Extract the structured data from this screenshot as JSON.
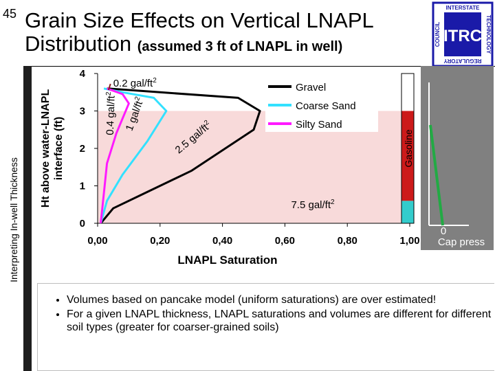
{
  "slide": {
    "number": "45",
    "title_line1": "Grain Size Effects on Vertical LNAPL",
    "title_line2": "Distribution",
    "title_sub": "(assumed 3 ft of LNAPL in well)",
    "side_label": "Interpreting In-well Thickness"
  },
  "logo": {
    "org": "ITRC",
    "top_text": "INTERSTATE",
    "left_text": "COUNCIL",
    "right_text": "TECHNOLOGY",
    "bottom_text": "REGULATORY",
    "color": "#1a1aa8"
  },
  "chart_data": {
    "type": "line",
    "xlabel": "LNAPL Saturation",
    "ylabel_line1": "Ht above water-LNAPL",
    "ylabel_line2": "interface (ft)",
    "xlim": [
      0,
      1
    ],
    "ylim": [
      0,
      4
    ],
    "x_ticks": [
      0,
      0.2,
      0.4,
      0.6,
      0.8,
      1.0
    ],
    "x_tick_labels": [
      "0,00",
      "0,20",
      "0,40",
      "0,60",
      "0,80",
      "1,00"
    ],
    "y_ticks": [
      0,
      1,
      2,
      3,
      4
    ],
    "y_tick_labels": [
      "0",
      "1",
      "2",
      "3",
      "4"
    ],
    "shaded_band": {
      "ymin": 0,
      "ymax": 3,
      "color": "#f8dada"
    },
    "series": [
      {
        "name": "Gravel",
        "color": "#000000",
        "x": [
          0.01,
          0.05,
          0.15,
          0.3,
          0.5,
          0.52,
          0.45,
          0.2,
          0.03
        ],
        "y": [
          0.0,
          0.4,
          0.8,
          1.4,
          2.5,
          3.0,
          3.35,
          3.5,
          3.6
        ]
      },
      {
        "name": "Coarse Sand",
        "color": "#33e1ff",
        "x": [
          0.01,
          0.03,
          0.08,
          0.16,
          0.22,
          0.18,
          0.08,
          0.02
        ],
        "y": [
          0.0,
          0.6,
          1.3,
          2.2,
          3.0,
          3.35,
          3.5,
          3.6
        ]
      },
      {
        "name": "Silty Sand",
        "color": "#ff1aff",
        "x": [
          0.01,
          0.02,
          0.03,
          0.06,
          0.1,
          0.08,
          0.03
        ],
        "y": [
          0.0,
          0.8,
          1.6,
          2.4,
          3.2,
          3.45,
          3.6
        ]
      }
    ],
    "annotations": [
      {
        "text": "0.2 gal/ft",
        "sup": "2",
        "x": 0.05,
        "y": 3.65
      },
      {
        "text": "0.4 gal/ft",
        "sup": "2",
        "x": 0.05,
        "y": 2.35,
        "rotate": -88
      },
      {
        "text": "1 gal/ft",
        "sup": "2",
        "x": 0.11,
        "y": 2.45,
        "rotate": -70
      },
      {
        "text": "2.5 gal/ft",
        "sup": "2",
        "x": 0.26,
        "y": 1.85,
        "rotate": -40
      },
      {
        "text": "7.5 gal/ft",
        "sup": "2",
        "x": 0.62,
        "y": 0.4
      }
    ],
    "gasoline_bar": {
      "label": "Gasoline",
      "segments": [
        {
          "from": 0.0,
          "to": 0.6,
          "color": "#33cccc"
        },
        {
          "from": 0.6,
          "to": 3.0,
          "color": "#cc1a1a"
        },
        {
          "from": 3.0,
          "to": 4.0,
          "color": "#ffffff"
        }
      ]
    },
    "cap_press": {
      "label_value": "0",
      "label_text": "Cap press",
      "line_color": "#22aa44"
    }
  },
  "bullets": [
    "Volumes based on pancake model (uniform saturations) are over estimated!",
    "For a given LNAPL thickness, LNAPL saturations and volumes are different for different soil types (greater for coarser-grained soils)"
  ]
}
